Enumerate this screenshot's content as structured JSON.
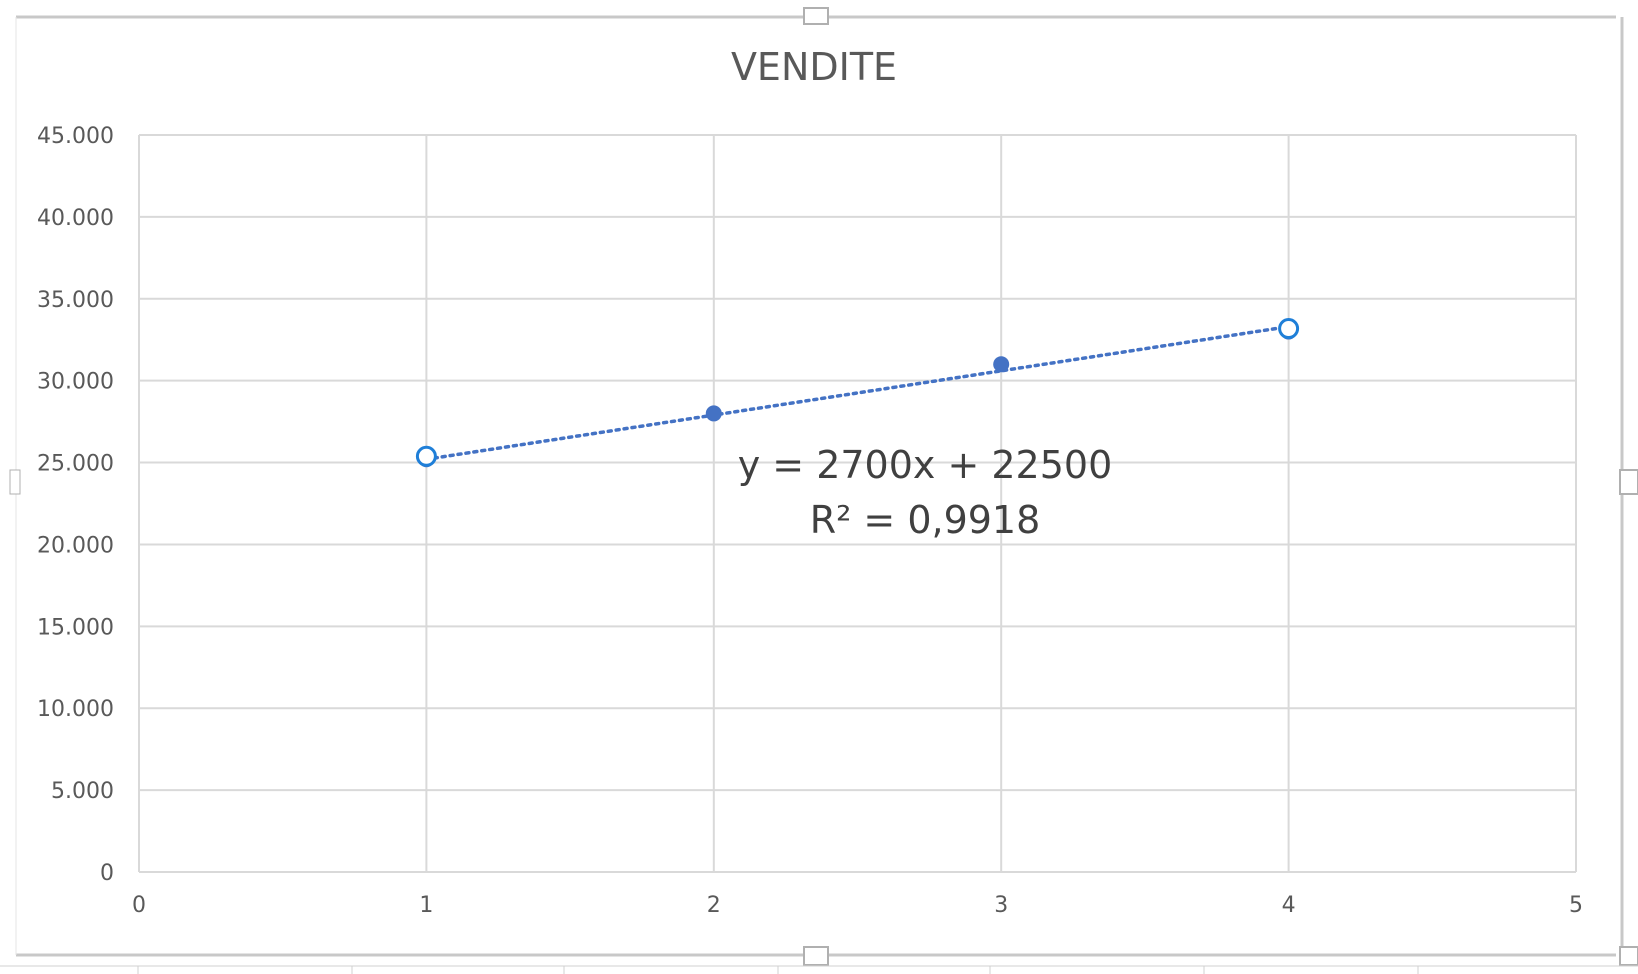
{
  "chart_data": {
    "type": "scatter",
    "title": "VENDITE",
    "xlabel": "",
    "ylabel": "",
    "xlim": [
      0,
      5
    ],
    "ylim": [
      0,
      45000
    ],
    "x_ticks": [
      0,
      1,
      2,
      3,
      4,
      5
    ],
    "x_tick_labels": [
      "0",
      "1",
      "2",
      "3",
      "4",
      "5"
    ],
    "y_ticks": [
      0,
      5000,
      10000,
      15000,
      20000,
      25000,
      30000,
      35000,
      40000,
      45000
    ],
    "y_tick_labels": [
      "0",
      "5.000",
      "10.000",
      "15.000",
      "20.000",
      "25.000",
      "30.000",
      "35.000",
      "40.000",
      "45.000"
    ],
    "grid": true,
    "legend": "none",
    "series": [
      {
        "x": [
          1,
          2,
          3,
          4
        ],
        "y": [
          25200,
          28000,
          31000,
          33000
        ],
        "color": "#4472C4",
        "selected_points": [
          1,
          4
        ]
      }
    ],
    "trendline": {
      "type": "linear",
      "style": "dotted",
      "color": "#4472C4",
      "slope": 2700,
      "intercept": 22500,
      "x_range": [
        1,
        4
      ],
      "equation_label": "y = 2700x + 22500",
      "r2_label": "R² = 0,9918"
    },
    "colors": {
      "grid": "#d9d9d9",
      "text": "#595959",
      "frame": "#c8c8c8",
      "selection": "#1f7fd8"
    }
  }
}
